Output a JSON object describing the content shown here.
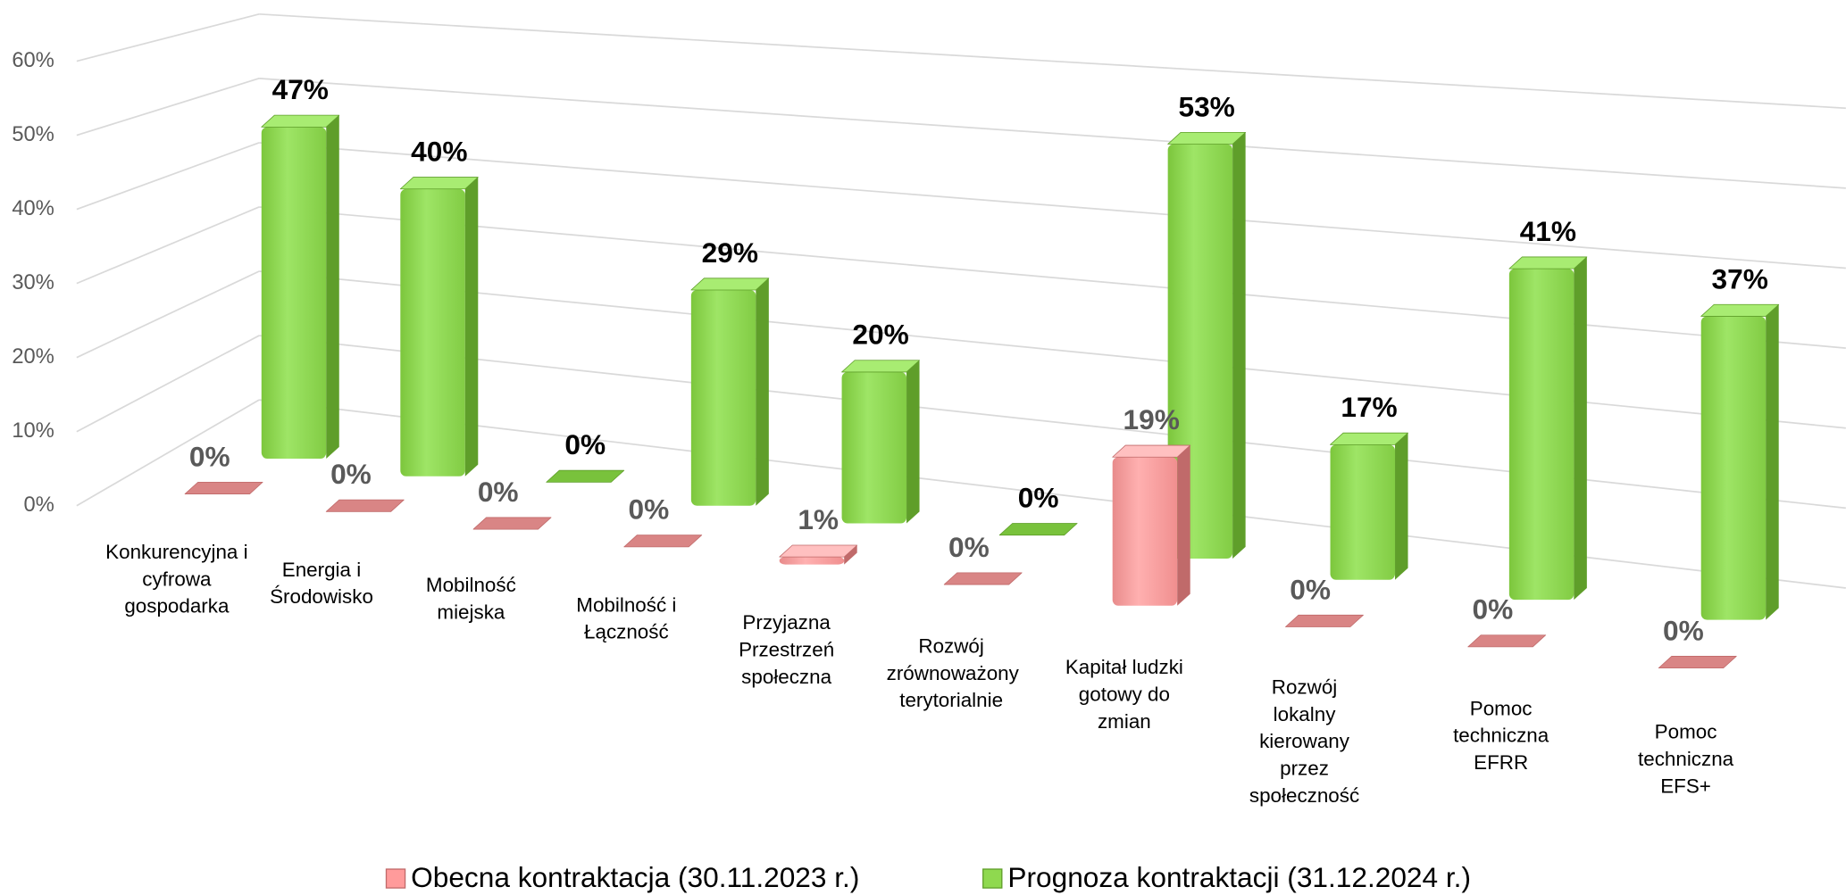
{
  "chart_data": {
    "type": "bar3d",
    "categories": [
      "Konkurencyjna i cyfrowa gospodarka",
      "Energia i Środowisko",
      "Mobilność miejska",
      "Mobilność i Łączność",
      "Przyjazna Przestrzeń społeczna",
      "Rozwój zrównoważony terytorialnie",
      "Kapitał ludzki gotowy do zmian",
      "Rozwój lokalny kierowany przez społeczność",
      "Pomoc techniczna EFRR",
      "Pomoc techniczna EFS+"
    ],
    "series": [
      {
        "name": "Obecna kontraktacja (30.11.2023 r.)",
        "color": "#ff9b9b",
        "values": [
          0,
          0,
          0,
          0,
          1,
          0,
          19,
          0,
          0,
          0
        ],
        "value_labels": [
          "0%",
          "0%",
          "0%",
          "0%",
          "1%",
          "0%",
          "19%",
          "0%",
          "0%",
          "0%"
        ]
      },
      {
        "name": "Prognoza kontraktacji (31.12.2024 r.)",
        "color": "#8fd94f",
        "values": [
          47,
          40,
          0,
          29,
          20,
          0,
          53,
          17,
          41,
          37
        ],
        "value_labels": [
          "47%",
          "40%",
          "0%",
          "29%",
          "20%",
          "0%",
          "53%",
          "17%",
          "41%",
          "37%"
        ]
      }
    ],
    "ylim": [
      0,
      60
    ],
    "yticks": [
      {
        "value": 0,
        "label": "0%"
      },
      {
        "value": 10,
        "label": "10%"
      },
      {
        "value": 20,
        "label": "20%"
      },
      {
        "value": 30,
        "label": "30%"
      },
      {
        "value": 40,
        "label": "40%"
      },
      {
        "value": 50,
        "label": "50%"
      },
      {
        "value": 60,
        "label": "60%"
      }
    ],
    "grid": true
  }
}
